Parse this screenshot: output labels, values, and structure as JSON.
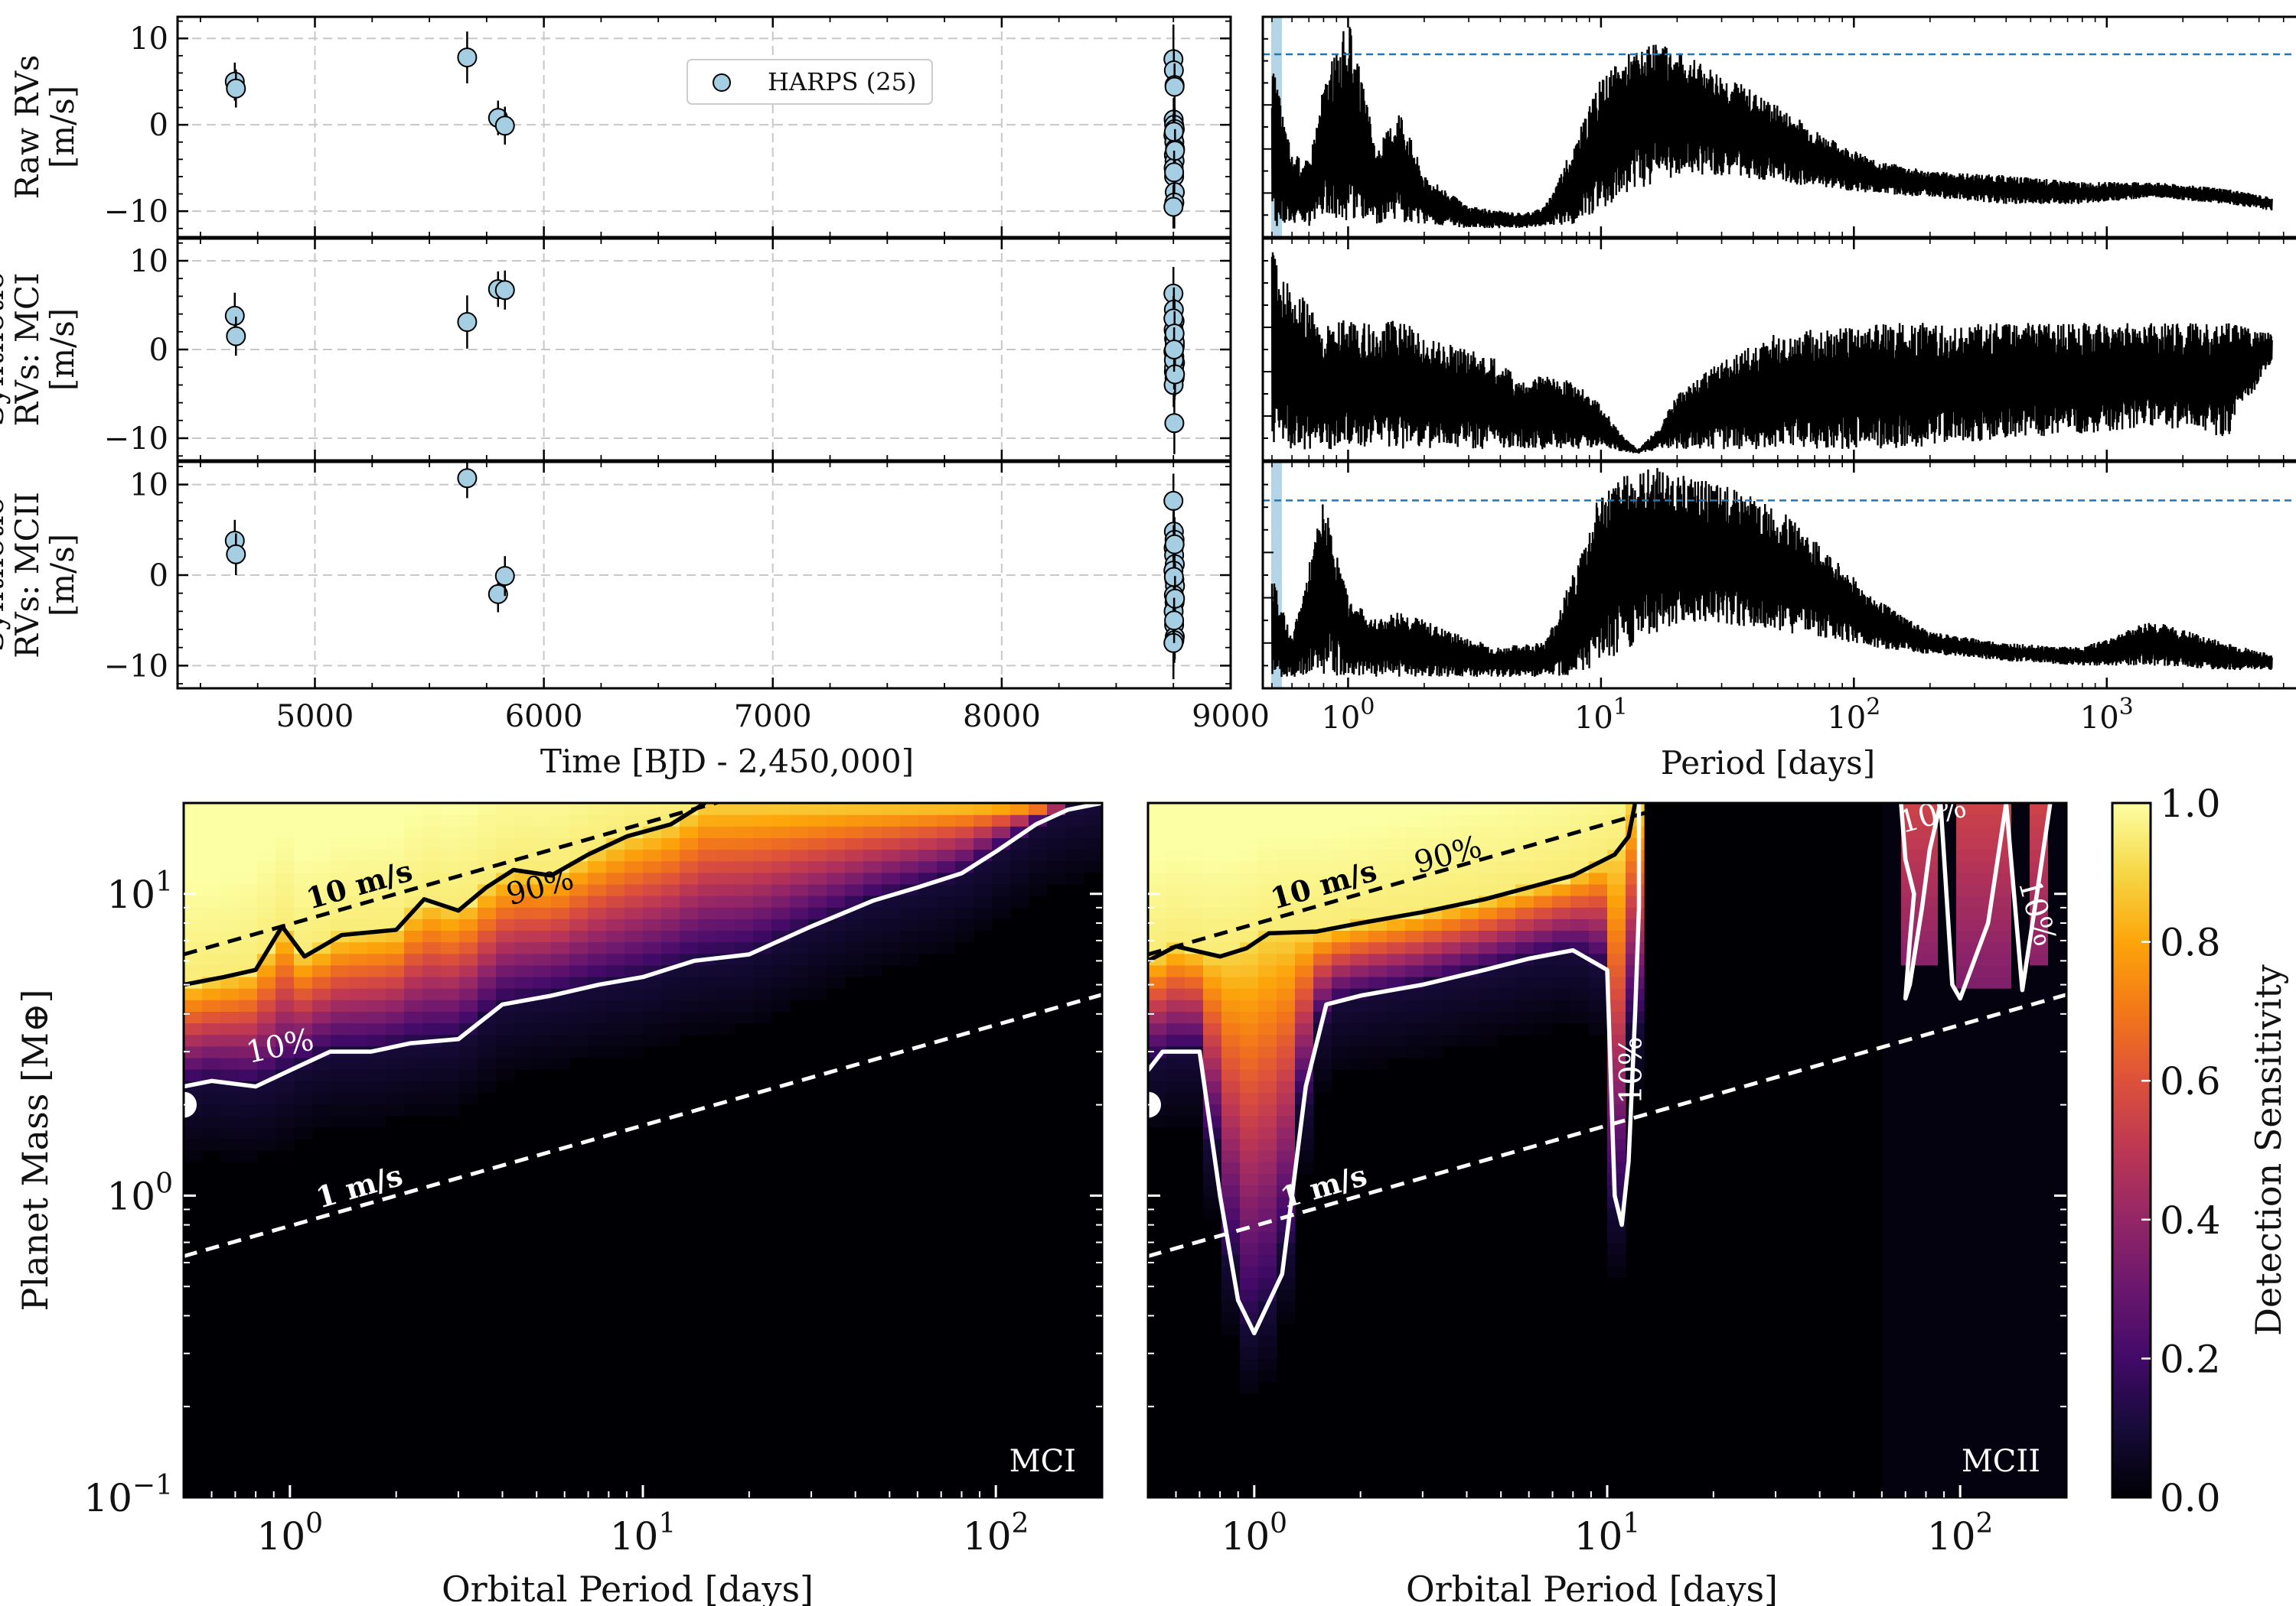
{
  "chart_data": [
    {
      "type": "scatter",
      "id": "rv_raw",
      "ylabel_lines": [
        "Raw RVs",
        "[m/s]"
      ],
      "xlim": [
        4400,
        9000
      ],
      "ylim": [
        -13,
        12.5
      ],
      "yticks": [
        10,
        0,
        -10
      ],
      "ytick_labels": [
        "10",
        "0",
        "−10"
      ],
      "xgrid": [
        5000,
        6000,
        7000,
        8000
      ],
      "legend": {
        "label": "HARPS (25)",
        "position": "top-center"
      },
      "series": [
        {
          "name": "HARPS",
          "x": [
            4650,
            4655,
            5665,
            5800,
            5830,
            8750,
            8752,
            8755,
            8751,
            8753,
            8756,
            8750,
            8754,
            8757,
            8752,
            8755,
            8751,
            8753,
            8756,
            8754,
            8750,
            8755,
            8752,
            8757,
            8753
          ],
          "y": [
            5.0,
            4.2,
            7.8,
            0.8,
            -0.1,
            7.6,
            6.3,
            4.6,
            0.6,
            0.0,
            -0.5,
            -1.2,
            -2.0,
            -2.8,
            -3.5,
            -4.2,
            -5.0,
            -6.0,
            -7.8,
            -9.0,
            -9.5,
            4.4,
            -0.8,
            -3.0,
            -5.5
          ],
          "yerr": [
            2.2,
            2.2,
            3.0,
            2.0,
            2.2,
            4.0,
            2.5,
            2.5,
            2.5,
            2.5,
            2.5,
            2.5,
            2.5,
            2.5,
            2.5,
            2.5,
            2.5,
            2.5,
            2.5,
            3.0,
            2.5,
            2.5,
            2.5,
            2.5,
            2.5
          ]
        }
      ]
    },
    {
      "type": "scatter",
      "id": "rv_mci",
      "ylabel_lines": [
        "Synthetic",
        "RVs: MCI",
        "[m/s]"
      ],
      "xlim": [
        4400,
        9000
      ],
      "ylim": [
        -12.5,
        12.5
      ],
      "yticks": [
        10,
        0,
        -10
      ],
      "ytick_labels": [
        "10",
        "0",
        "−10"
      ],
      "xgrid": [
        5000,
        6000,
        7000,
        8000
      ],
      "series": [
        {
          "name": "MCI",
          "x": [
            4650,
            4655,
            5665,
            5800,
            5830,
            8750,
            8752,
            8755,
            8751,
            8753,
            8756,
            8750,
            8754,
            8757,
            8752,
            8755,
            8751,
            8753,
            8756,
            8754,
            8750,
            8755,
            8752,
            8757,
            8753
          ],
          "y": [
            3.8,
            1.5,
            3.1,
            6.8,
            6.7,
            6.3,
            4.5,
            3.2,
            2.2,
            1.2,
            0.4,
            -0.2,
            -0.8,
            -1.5,
            -2.5,
            -3.2,
            -4.0,
            -2.0,
            0.8,
            -8.3,
            3.5,
            1.8,
            -1.2,
            -2.8,
            0.0
          ],
          "yerr": [
            2.6,
            2.2,
            3.0,
            2.0,
            2.2,
            3.0,
            2.5,
            2.5,
            2.5,
            2.5,
            2.5,
            2.5,
            2.5,
            2.5,
            2.5,
            2.5,
            2.5,
            2.5,
            2.5,
            3.5,
            2.5,
            2.5,
            2.5,
            2.5,
            2.5
          ]
        }
      ]
    },
    {
      "type": "scatter",
      "id": "rv_mcii",
      "ylabel_lines": [
        "Synthetic",
        "RVs: MCII",
        "[m/s]"
      ],
      "xlim": [
        4400,
        9000
      ],
      "ylim": [
        -12.5,
        12.5
      ],
      "yticks": [
        10,
        0,
        -10
      ],
      "ytick_labels": [
        "10",
        "0",
        "−10"
      ],
      "xlabel": "Time [BJD - 2,450,000]",
      "xticks": [
        5000,
        6000,
        7000,
        8000,
        9000
      ],
      "xtick_labels": [
        "5000",
        "6000",
        "7000",
        "8000",
        "9000"
      ],
      "xgrid": [
        5000,
        6000,
        7000,
        8000
      ],
      "series": [
        {
          "name": "MCII",
          "x": [
            4650,
            4655,
            5665,
            5800,
            5830,
            8750,
            8752,
            8755,
            8751,
            8753,
            8756,
            8750,
            8754,
            8757,
            8752,
            8755,
            8751,
            8753,
            8756,
            8754,
            8750,
            8755,
            8752,
            8757,
            8753
          ],
          "y": [
            3.8,
            2.3,
            10.7,
            -2.1,
            -0.1,
            8.2,
            4.8,
            3.9,
            3.0,
            2.2,
            1.2,
            0.5,
            -0.5,
            -1.2,
            -2.2,
            -3.0,
            -4.0,
            -5.5,
            -6.8,
            -7.2,
            -7.5,
            3.4,
            -0.2,
            -2.6,
            -5.0
          ],
          "yerr": [
            2.3,
            2.3,
            2.2,
            2.0,
            2.2,
            3.0,
            2.5,
            2.5,
            2.5,
            2.5,
            2.5,
            2.5,
            2.5,
            2.5,
            2.5,
            2.5,
            2.5,
            2.5,
            2.5,
            2.5,
            4.0,
            2.5,
            2.5,
            2.5,
            2.5
          ]
        }
      ]
    },
    {
      "type": "line",
      "id": "gls_raw",
      "xscale": "log",
      "xlim": [
        0.46,
        5600
      ],
      "ylim": [
        0,
        1
      ],
      "highlight_period": 0.5,
      "threshold_level": 0.83,
      "envelope": {
        "period": [
          0.5,
          0.6,
          0.7,
          0.8,
          1.0,
          1.3,
          1.6,
          2.0,
          3.0,
          4.0,
          5.0,
          6.0,
          8.0,
          10,
          13,
          17,
          20,
          30,
          50,
          80,
          120,
          200,
          400,
          800,
          1500,
          3000,
          4500
        ],
        "upper": [
          0.8,
          0.38,
          0.35,
          0.7,
          1.0,
          0.4,
          0.6,
          0.28,
          0.14,
          0.12,
          0.11,
          0.14,
          0.45,
          0.72,
          0.85,
          0.88,
          0.85,
          0.75,
          0.6,
          0.45,
          0.35,
          0.3,
          0.28,
          0.25,
          0.25,
          0.22,
          0.18
        ],
        "lower": [
          0.05,
          0.05,
          0.05,
          0.1,
          0.07,
          0.05,
          0.06,
          0.06,
          0.04,
          0.04,
          0.04,
          0.05,
          0.06,
          0.12,
          0.2,
          0.25,
          0.28,
          0.28,
          0.25,
          0.22,
          0.2,
          0.18,
          0.15,
          0.15,
          0.18,
          0.15,
          0.12
        ]
      }
    },
    {
      "type": "line",
      "id": "gls_mci",
      "xscale": "log",
      "xlim": [
        0.46,
        5600
      ],
      "ylim": [
        0,
        1
      ],
      "envelope": {
        "period": [
          0.5,
          0.6,
          0.7,
          0.8,
          1.0,
          1.3,
          1.6,
          2.0,
          3.0,
          4.0,
          5.0,
          6.0,
          8.0,
          10,
          12,
          14,
          17,
          20,
          30,
          50,
          80,
          120,
          200,
          400,
          800,
          1500,
          3000,
          4500
        ],
        "upper": [
          0.95,
          0.8,
          0.7,
          0.6,
          0.65,
          0.6,
          0.65,
          0.55,
          0.5,
          0.45,
          0.35,
          0.4,
          0.35,
          0.25,
          0.12,
          0.05,
          0.15,
          0.3,
          0.45,
          0.58,
          0.6,
          0.62,
          0.62,
          0.62,
          0.62,
          0.62,
          0.62,
          0.58
        ],
        "lower": [
          0.05,
          0.05,
          0.05,
          0.05,
          0.05,
          0.05,
          0.05,
          0.05,
          0.05,
          0.05,
          0.05,
          0.05,
          0.05,
          0.05,
          0.04,
          0.03,
          0.05,
          0.05,
          0.05,
          0.05,
          0.05,
          0.05,
          0.06,
          0.1,
          0.12,
          0.15,
          0.1,
          0.45
        ]
      }
    },
    {
      "type": "line",
      "id": "gls_mcii",
      "xscale": "log",
      "xlim": [
        0.46,
        5600
      ],
      "ylim": [
        0,
        1
      ],
      "xlabel": "Period [days]",
      "xtick_labels": [
        "10",
        "10",
        "10",
        "10"
      ],
      "xtick_exponents": [
        "0",
        "1",
        "2",
        "3"
      ],
      "highlight_period": 0.5,
      "threshold_level": 0.83,
      "envelope": {
        "period": [
          0.5,
          0.6,
          0.7,
          0.8,
          1.0,
          1.3,
          1.6,
          2.0,
          3.0,
          4.0,
          5.0,
          6.0,
          8.0,
          10,
          13,
          17,
          20,
          30,
          50,
          80,
          120,
          200,
          400,
          800,
          1500,
          3000,
          4500
        ],
        "upper": [
          0.5,
          0.22,
          0.55,
          0.85,
          0.4,
          0.3,
          0.35,
          0.3,
          0.22,
          0.18,
          0.2,
          0.2,
          0.55,
          0.88,
          0.95,
          0.98,
          0.95,
          0.9,
          0.8,
          0.6,
          0.4,
          0.25,
          0.2,
          0.18,
          0.3,
          0.2,
          0.15
        ],
        "lower": [
          0.05,
          0.05,
          0.05,
          0.05,
          0.06,
          0.05,
          0.05,
          0.05,
          0.05,
          0.05,
          0.05,
          0.05,
          0.06,
          0.1,
          0.18,
          0.25,
          0.28,
          0.28,
          0.25,
          0.22,
          0.18,
          0.15,
          0.12,
          0.1,
          0.1,
          0.08,
          0.08
        ]
      }
    },
    {
      "type": "heatmap",
      "id": "sens_mci",
      "tag": "MCI",
      "xscale": "log",
      "yscale": "log",
      "xlim": [
        0.5,
        200
      ],
      "ylim": [
        0.1,
        20
      ],
      "xlabel": "Orbital Period [days]",
      "ylabel": "Planet Mass [M⊕]",
      "xtick_labels": [
        "10",
        "10",
        "10"
      ],
      "xtick_exponents": [
        "0",
        "1",
        "2"
      ],
      "ytick_labels": [
        "10",
        "10",
        "10"
      ],
      "ytick_exponents": [
        "−1",
        "0",
        "1"
      ],
      "rv_lines": [
        {
          "label": "10 m/s",
          "mass_at_0.5d": 6.3,
          "slope": 0.333
        },
        {
          "label": "1 m/s",
          "mass_at_0.5d": 0.63,
          "slope": 0.333
        }
      ],
      "contour_90": {
        "label": "90%",
        "period": [
          0.5,
          0.65,
          0.8,
          0.95,
          1.1,
          1.4,
          2.0,
          2.4,
          3.0,
          3.6,
          4.3,
          5.5,
          7,
          9,
          12,
          15
        ],
        "mass": [
          5.0,
          5.3,
          5.6,
          7.8,
          6.2,
          7.3,
          7.6,
          9.6,
          8.8,
          10.5,
          12.0,
          11.5,
          13.5,
          15.5,
          17.0,
          20.0
        ]
      },
      "contour_10": {
        "label": "10%",
        "period": [
          0.5,
          0.6,
          0.8,
          1.0,
          1.3,
          1.7,
          2.2,
          3.0,
          4.0,
          5.5,
          7.5,
          10,
          14,
          20,
          30,
          45,
          60,
          80,
          100,
          130,
          160,
          200
        ],
        "mass": [
          2.3,
          2.4,
          2.3,
          2.6,
          3.0,
          3.0,
          3.2,
          3.3,
          4.3,
          4.6,
          5.0,
          5.3,
          6.0,
          6.3,
          7.8,
          9.5,
          10.5,
          11.7,
          13.8,
          17.0,
          19.0,
          20.0
        ]
      },
      "planet": {
        "period": 0.5,
        "mass": 2.0
      }
    },
    {
      "type": "heatmap",
      "id": "sens_mcii",
      "tag": "MCII",
      "xscale": "log",
      "yscale": "log",
      "xlim": [
        0.5,
        200
      ],
      "ylim": [
        0.1,
        20
      ],
      "xlabel": "Orbital Period [days]",
      "xtick_labels": [
        "10",
        "10",
        "10"
      ],
      "xtick_exponents": [
        "0",
        "1",
        "2"
      ],
      "rv_lines": [
        {
          "label": "10 m/s",
          "mass_at_0.5d": 6.3,
          "slope": 0.333
        },
        {
          "label": "1 m/s",
          "mass_at_0.5d": 0.63,
          "slope": 0.333
        }
      ],
      "contour_90": {
        "label": "90%",
        "period": [
          0.5,
          0.6,
          0.8,
          0.95,
          1.1,
          1.5,
          2.0,
          3.0,
          4.5,
          6.0,
          8.0,
          10.5,
          11.5,
          12.0
        ],
        "mass": [
          6.0,
          6.7,
          6.2,
          6.6,
          7.4,
          7.5,
          8.0,
          8.7,
          9.6,
          10.5,
          11.5,
          13.5,
          15.5,
          20.0
        ]
      },
      "contour_10": {
        "label": "10%",
        "period": [
          0.5,
          0.55,
          0.7,
          0.8,
          0.9,
          1.0,
          1.2,
          1.4,
          1.6,
          2.0,
          3.0,
          4.5,
          6.0,
          8.0,
          10.0,
          10.5,
          11.0,
          11.5,
          12.0,
          12.3,
          12.3
        ],
        "mass": [
          2.6,
          3.0,
          3.0,
          1.0,
          0.45,
          0.35,
          0.55,
          2.3,
          4.3,
          4.6,
          5.0,
          5.6,
          6.1,
          6.5,
          5.6,
          1.0,
          0.8,
          1.3,
          4.0,
          9.0,
          20.0
        ]
      },
      "contour_10b": {
        "label": "10%",
        "period": [
          68,
          70,
          74,
          72,
          70,
          72,
          78,
          82,
          88,
          95,
          100,
          120,
          135,
          150,
          165,
          180
        ],
        "mass": [
          20,
          13,
          10,
          7.0,
          4.5,
          5.0,
          9.0,
          14,
          20,
          5.0,
          4.5,
          8.0,
          20,
          4.8,
          10,
          20
        ]
      },
      "planet": {
        "period": 0.5,
        "mass": 2.0
      },
      "colorbar": {
        "label": "Detection Sensitivity",
        "ticks": [
          0.0,
          0.2,
          0.4,
          0.6,
          0.8,
          1.0
        ],
        "tick_labels": [
          "0.0",
          "0.2",
          "0.4",
          "0.6",
          "0.8",
          "1.0"
        ]
      }
    }
  ]
}
